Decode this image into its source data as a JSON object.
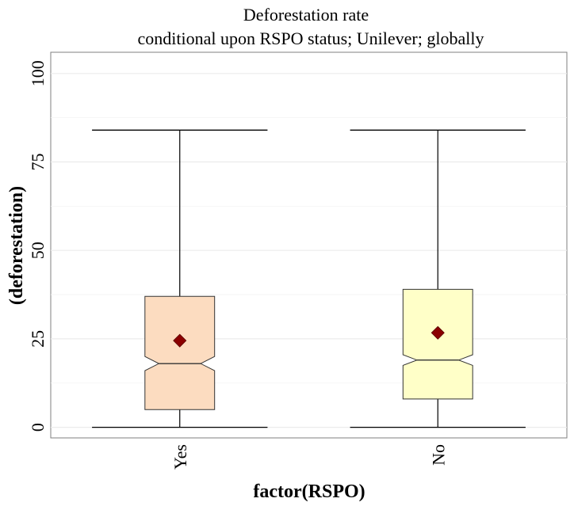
{
  "chart_data": {
    "type": "box",
    "title": "Deforestation rate",
    "subtitle": "conditional upon RSPO status; Unilever; globally",
    "xlabel": "factor(RSPO)",
    "ylabel": "(deforestation)",
    "categories": [
      "Yes",
      "No"
    ],
    "ylim": [
      -3,
      106
    ],
    "yticks": [
      0,
      25,
      50,
      75,
      100
    ],
    "grid": true,
    "notched": true,
    "boxes": [
      {
        "category": "Yes",
        "min": 0,
        "q1": 5,
        "median": 18,
        "q3": 37,
        "max": 84,
        "mean": 24.5,
        "notch_low": 16,
        "notch_high": 20,
        "fill": "#fcdcc0"
      },
      {
        "category": "No",
        "min": 0,
        "q1": 8,
        "median": 19,
        "q3": 39,
        "max": 84,
        "mean": 26.7,
        "notch_low": 17.5,
        "notch_high": 20.5,
        "fill": "#ffffc8"
      }
    ],
    "mean_marker_color": "#8b0000"
  }
}
